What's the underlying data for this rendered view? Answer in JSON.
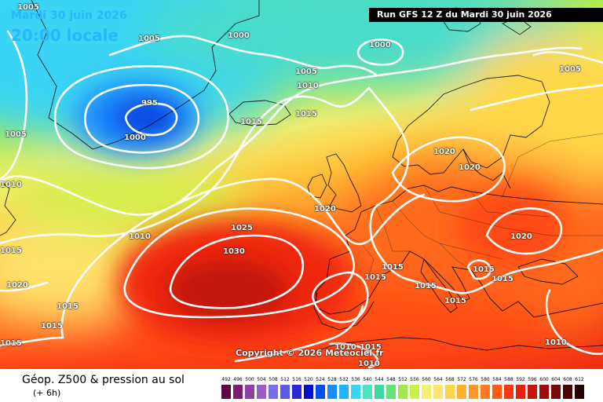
{
  "header": {
    "date": "Mardi 30 juin 2026",
    "local_time": "20:00 locale",
    "run_banner": "Run GFS 12 Z du Mardi 30 juin 2026"
  },
  "copyright": "Copyright © 2026 Meteociel.fr",
  "footer": {
    "title": "Géop. Z500 & pression au sol",
    "subtitle": "(+ 6h)"
  },
  "legend": {
    "unit": "geopotential-dam",
    "ticks": [
      "492",
      "496",
      "500",
      "504",
      "508",
      "512",
      "516",
      "520",
      "524",
      "528",
      "532",
      "536",
      "540",
      "544",
      "548",
      "552",
      "556",
      "560",
      "564",
      "568",
      "572",
      "576",
      "580",
      "584",
      "588",
      "592",
      "596",
      "600",
      "604",
      "608",
      "612"
    ],
    "colors": [
      "#5a0a3c",
      "#7a1f6e",
      "#8e3fa0",
      "#9c5cc6",
      "#7a6ee6",
      "#5a5ae6",
      "#2828d8",
      "#0010c8",
      "#0050f0",
      "#1a8cff",
      "#20b4ff",
      "#36d8f0",
      "#4ae6c2",
      "#3fd6a0",
      "#66e07a",
      "#a0ea50",
      "#c8f048",
      "#f4f070",
      "#ffe670",
      "#ffd24a",
      "#ffb232",
      "#ff9628",
      "#ff7a22",
      "#ff5a1a",
      "#ff3614",
      "#e81e10",
      "#c8120c",
      "#a20a0a",
      "#7a0606",
      "#4a0404",
      "#240202"
    ]
  },
  "isobar_labels": [
    {
      "text": "1005"
    },
    {
      "text": "1005"
    },
    {
      "text": "1000"
    },
    {
      "text": "1000"
    },
    {
      "text": "1005"
    },
    {
      "text": "1010"
    },
    {
      "text": "995"
    },
    {
      "text": "1000"
    },
    {
      "text": "1015"
    },
    {
      "text": "1015"
    },
    {
      "text": "1005"
    },
    {
      "text": "1005"
    },
    {
      "text": "1010"
    },
    {
      "text": "1020"
    },
    {
      "text": "1020"
    },
    {
      "text": "1020"
    },
    {
      "text": "1010"
    },
    {
      "text": "1025"
    },
    {
      "text": "1030"
    },
    {
      "text": "1015"
    },
    {
      "text": "1020"
    },
    {
      "text": "1015"
    },
    {
      "text": "1015"
    },
    {
      "text": "1015"
    },
    {
      "text": "1015"
    },
    {
      "text": "1015"
    },
    {
      "text": "1015"
    },
    {
      "text": "1015"
    },
    {
      "text": "1015"
    },
    {
      "text": "1020"
    },
    {
      "text": "1015"
    },
    {
      "text": "1010"
    },
    {
      "text": "1010"
    },
    {
      "text": "1015"
    },
    {
      "text": "1010"
    }
  ]
}
